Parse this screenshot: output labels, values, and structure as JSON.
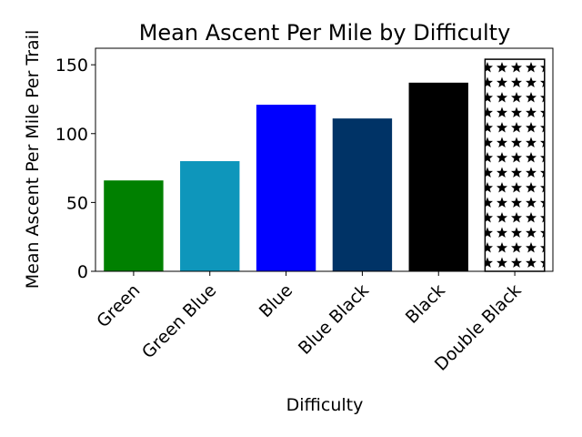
{
  "chart_data": {
    "type": "bar",
    "title": "Mean Ascent Per Mile by Difficulty",
    "xlabel": "Difficulty",
    "ylabel": "Mean Ascent Per Mile Per Trail",
    "categories": [
      "Green",
      "Green Blue",
      "Blue",
      "Blue Black",
      "Black",
      "Double Black"
    ],
    "values": [
      66,
      80,
      121,
      111,
      137,
      154
    ],
    "colors": [
      "#008000",
      "#0e96bb",
      "#0000ff",
      "#003366",
      "#000000",
      "#ffffff"
    ],
    "hatch": [
      null,
      null,
      null,
      null,
      null,
      "stars"
    ],
    "ylim": [
      0,
      162
    ],
    "yticks": [
      0,
      50,
      100,
      150
    ],
    "grid": false
  }
}
